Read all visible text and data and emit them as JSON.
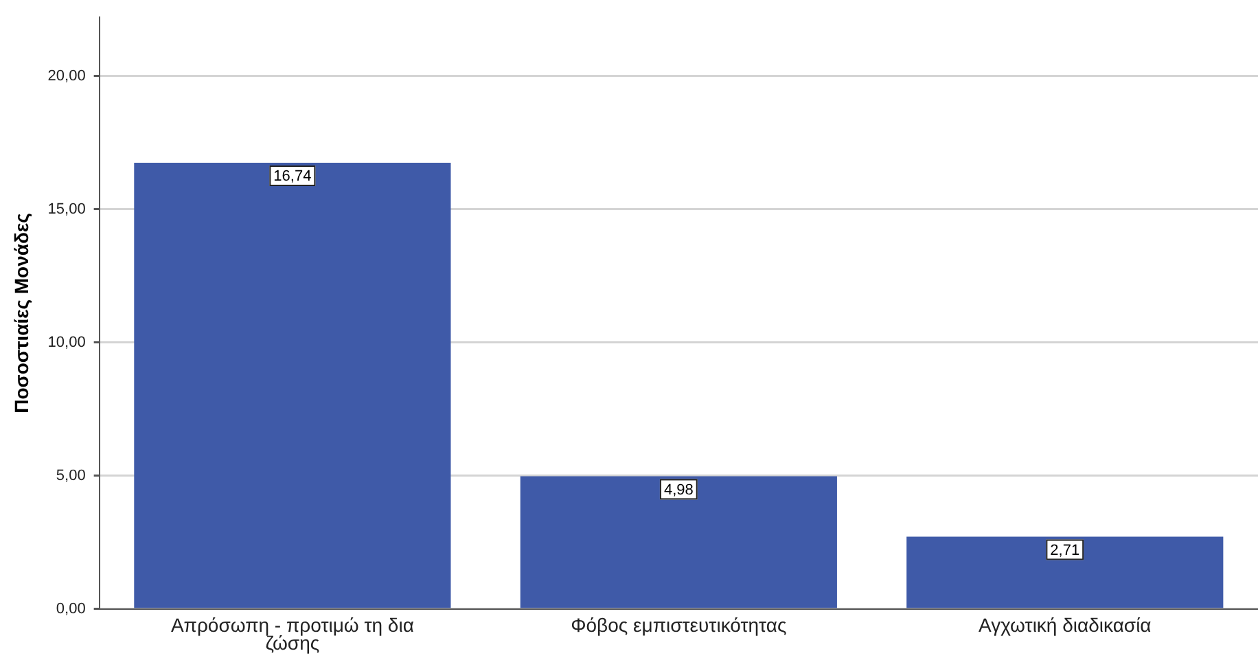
{
  "chart_data": {
    "type": "bar",
    "ylabel": "Ποσοστιαίες Μονάδες",
    "categories": [
      "Απρόσωπη - προτιμώ τη δια ζώσης",
      "Φόβος εμπιστευτικότητας",
      "Αγχωτική διαδικασία"
    ],
    "values": [
      16.74,
      4.98,
      2.71
    ],
    "value_labels": [
      "16,74",
      "4,98",
      "2,71"
    ],
    "color": "#3f5aa8",
    "ylim": [
      0,
      22.2
    ],
    "yticks": [
      {
        "value": 0,
        "label": "0,00"
      },
      {
        "value": 5,
        "label": "5,00"
      },
      {
        "value": 10,
        "label": "10,00"
      },
      {
        "value": 15,
        "label": "15,00"
      },
      {
        "value": 20,
        "label": "20,00"
      }
    ],
    "grid": "y",
    "legend": false
  }
}
